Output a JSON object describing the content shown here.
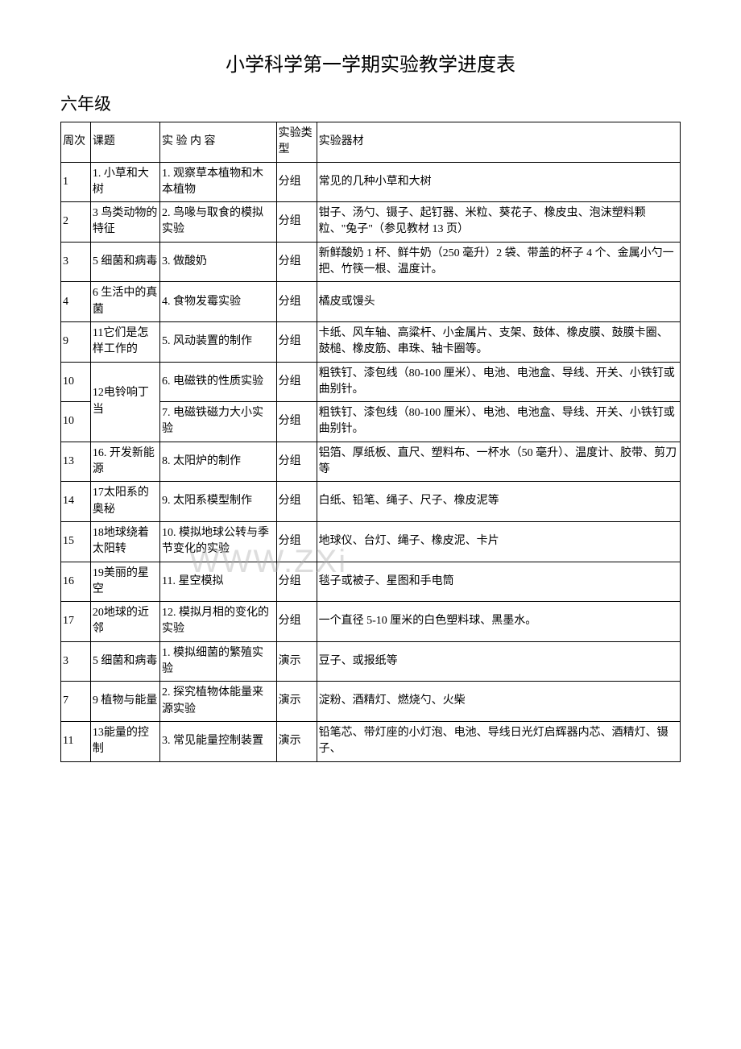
{
  "title": "小学科学第一学期实验教学进度表",
  "subtitle": "六年级",
  "watermark": "WWW.ZXi",
  "headers": {
    "week": "周次",
    "topic": "课题",
    "content": "实 验 内 容",
    "type": "实验类型",
    "equipment": "实验器材"
  },
  "rows": [
    {
      "week": "1",
      "topic": "1. 小草和大树",
      "content": "1. 观察草本植物和木本植物",
      "type": "分组",
      "equipment": "常见的几种小草和大树"
    },
    {
      "week": "2",
      "topic": "3 鸟类动物的特征",
      "content": "2. 鸟喙与取食的模拟实验",
      "type": "分组",
      "equipment": "钳子、汤勺、镊子、起钉器、米粒、葵花子、橡皮虫、泡沫塑料颗粒、\"兔子\"（参见教材 13 页）"
    },
    {
      "week": "3",
      "topic": "5 细菌和病毒",
      "content": "3. 做酸奶",
      "type": "分组",
      "equipment": "新鲜酸奶 1 杯、鲜牛奶（250 毫升）2 袋、带盖的杯子 4 个、金属小勺一把、竹筷一根、温度计。"
    },
    {
      "week": "4",
      "topic": "6 生活中的真菌",
      "content": "4. 食物发霉实验",
      "type": "分组",
      "equipment": "橘皮或馒头"
    },
    {
      "week": "9",
      "topic": "11它们是怎样工作的",
      "content": "5. 风动装置的制作",
      "type": "分组",
      "equipment": "卡纸、风车轴、高粱杆、小金属片、支架、鼓体、橡皮膜、鼓膜卡圈、鼓槌、橡皮筋、串珠、轴卡圈等。"
    },
    {
      "week": "10",
      "topic": "12电铃响丁当",
      "content": "6. 电磁铁的性质实验",
      "type": "分组",
      "equipment": "粗铁钉、漆包线（80-100 厘米）、电池、电池盒、导线、开关、小铁钉或曲别针。",
      "rowspan": 2
    },
    {
      "week": "10",
      "content": "7. 电磁铁磁力大小实验",
      "type": "分组",
      "equipment": "粗铁钉、漆包线（80-100 厘米）、电池、电池盒、导线、开关、小铁钉或曲别针。"
    },
    {
      "week": "13",
      "topic": "16. 开发新能源",
      "content": "8. 太阳炉的制作",
      "type": "分组",
      "equipment": "铝箔、厚纸板、直尺、塑料布、一杯水（50 毫升）、温度计、胶带、剪刀等"
    },
    {
      "week": "14",
      "topic": "17太阳系的奥秘",
      "content": "9. 太阳系模型制作",
      "type": "分组",
      "equipment": "白纸、铅笔、绳子、尺子、橡皮泥等"
    },
    {
      "week": "15",
      "topic": "18地球绕着太阳转",
      "content": "10. 模拟地球公转与季节变化的实验",
      "type": "分组",
      "equipment": "地球仪、台灯、绳子、橡皮泥、卡片"
    },
    {
      "week": "16",
      "topic": "19美丽的星空",
      "content": "11. 星空模拟",
      "type": "分组",
      "equipment": "毯子或被子、星图和手电筒"
    },
    {
      "week": "17",
      "topic": "20地球的近邻",
      "content": "12. 模拟月相的变化的实验",
      "type": "分组",
      "equipment": "一个直径 5-10 厘米的白色塑料球、黑墨水。"
    },
    {
      "week": "3",
      "topic": "5 细菌和病毒",
      "content": "1. 模拟细菌的繁殖实验",
      "type": "演示",
      "equipment": "豆子、或报纸等"
    },
    {
      "week": "7",
      "topic": "9 植物与能量",
      "content": "2. 探究植物体能量来源实验",
      "type": "演示",
      "equipment": "淀粉、酒精灯、燃烧勺、火柴"
    },
    {
      "week": "11",
      "topic": "13能量的控制",
      "content": "3. 常见能量控制装置",
      "type": "演示",
      "equipment": "铅笔芯、带灯座的小灯泡、电池、导线日光灯启辉器内芯、酒精灯、镊子、"
    }
  ]
}
